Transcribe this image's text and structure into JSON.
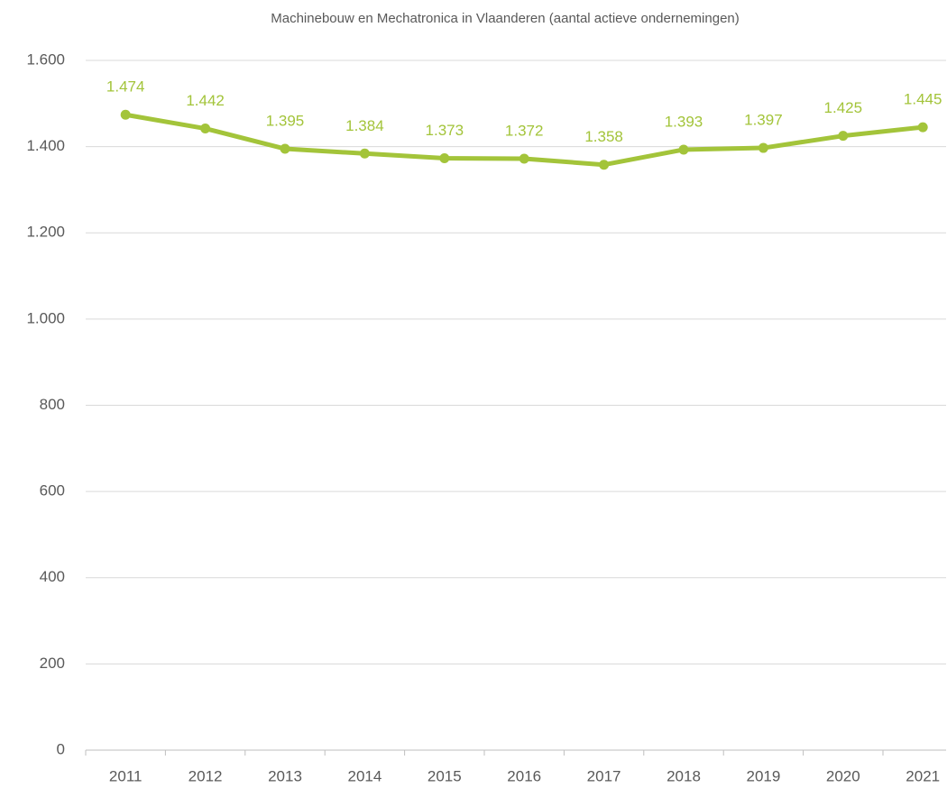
{
  "chart_data": {
    "type": "line",
    "title": "Machinebouw en Mechatronica in Vlaanderen (aantal actieve ondernemingen)",
    "categories": [
      "2011",
      "2012",
      "2013",
      "2014",
      "2015",
      "2016",
      "2017",
      "2018",
      "2019",
      "2020",
      "2021"
    ],
    "series": [
      {
        "name": "Machinebouw en Mechatronica",
        "color": "#a3c43a",
        "values": [
          1474,
          1442,
          1395,
          1384,
          1373,
          1372,
          1358,
          1393,
          1397,
          1425,
          1445
        ],
        "value_labels": [
          "1.474",
          "1.442",
          "1.395",
          "1.384",
          "1.373",
          "1.372",
          "1.358",
          "1.393",
          "1.397",
          "1.425",
          "1.445"
        ]
      }
    ],
    "ylim": [
      0,
      1600
    ],
    "yticks": [
      0,
      200,
      400,
      600,
      800,
      {
        "value": 1000,
        "label": "1.000"
      },
      {
        "value": 1200,
        "label": "1.200"
      },
      {
        "value": 1400,
        "label": "1.400"
      },
      {
        "value": 1600,
        "label": "1.600"
      }
    ],
    "grid": true
  }
}
